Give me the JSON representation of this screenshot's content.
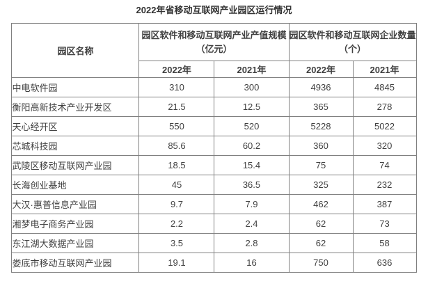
{
  "chart_data": {
    "type": "table",
    "title": "2022年省移动互联网产业园区运行情况",
    "column_groups": [
      {
        "label": "园区名称",
        "span": 1
      },
      {
        "label": "园区软件和移动互联网产业产值规模（亿元）",
        "span": 2
      },
      {
        "label": "园区软件和移动互联网企业数量（个）",
        "span": 2
      }
    ],
    "sub_columns": [
      "2022年",
      "2021年",
      "2022年",
      "2021年"
    ],
    "rows": [
      [
        "中电软件园",
        310,
        300,
        4936,
        4845
      ],
      [
        "衡阳高新技术产业开发区",
        21.5,
        12.5,
        365,
        278
      ],
      [
        "天心经开区",
        550,
        520,
        5228,
        5022
      ],
      [
        "芯城科技园",
        85.6,
        60.2,
        360,
        320
      ],
      [
        "武陵区移动互联网产业园",
        18.5,
        15.4,
        75,
        74
      ],
      [
        "长海创业基地",
        45,
        36.5,
        325,
        232
      ],
      [
        "大汉·惠普信息产业园",
        9.7,
        7.9,
        462,
        387
      ],
      [
        "湘梦电子商务产业园",
        2.2,
        2.4,
        62,
        73
      ],
      [
        "东江湖大数据产业园",
        3.5,
        2.8,
        62,
        58
      ],
      [
        "娄底市移动互联网产业园",
        19.1,
        16,
        750,
        636
      ]
    ]
  },
  "colors": {
    "background": "#ffffff",
    "border": "#808080",
    "text": "#404040",
    "title_text": "#333333"
  }
}
